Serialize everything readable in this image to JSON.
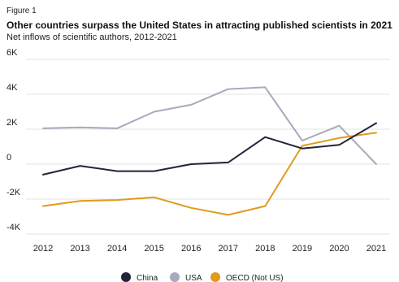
{
  "figure_label": "Figure 1",
  "chart_data": {
    "type": "line",
    "title": "Other countries surpass the United States in attracting published scientists in 2021",
    "subtitle": "Net inflows of scientific authors, 2012-2021",
    "xlabel": "",
    "ylabel": "",
    "x": [
      "2012",
      "2013",
      "2014",
      "2015",
      "2016",
      "2017",
      "2018",
      "2019",
      "2020",
      "2021"
    ],
    "ylim": [
      -4000,
      6000
    ],
    "yticks": [
      6000,
      4000,
      2000,
      0,
      -2000,
      -4000
    ],
    "ytick_labels": [
      "6K",
      "4K",
      "2K",
      "0",
      "-2K",
      "-4K"
    ],
    "grid": "horizontal",
    "legend_position": "bottom",
    "series": [
      {
        "name": "China",
        "color": "#23233a",
        "values": [
          -600,
          -100,
          -400,
          -400,
          0,
          100,
          1550,
          900,
          1100,
          2350
        ]
      },
      {
        "name": "USA",
        "color": "#aaa8bd",
        "values": [
          2050,
          2100,
          2050,
          3000,
          3400,
          4300,
          4400,
          1350,
          2200,
          0
        ]
      },
      {
        "name": "OECD (Not US)",
        "color": "#e19a1c",
        "values": [
          -2400,
          -2100,
          -2050,
          -1900,
          -2500,
          -2900,
          -2400,
          1050,
          1500,
          1800
        ]
      }
    ]
  }
}
